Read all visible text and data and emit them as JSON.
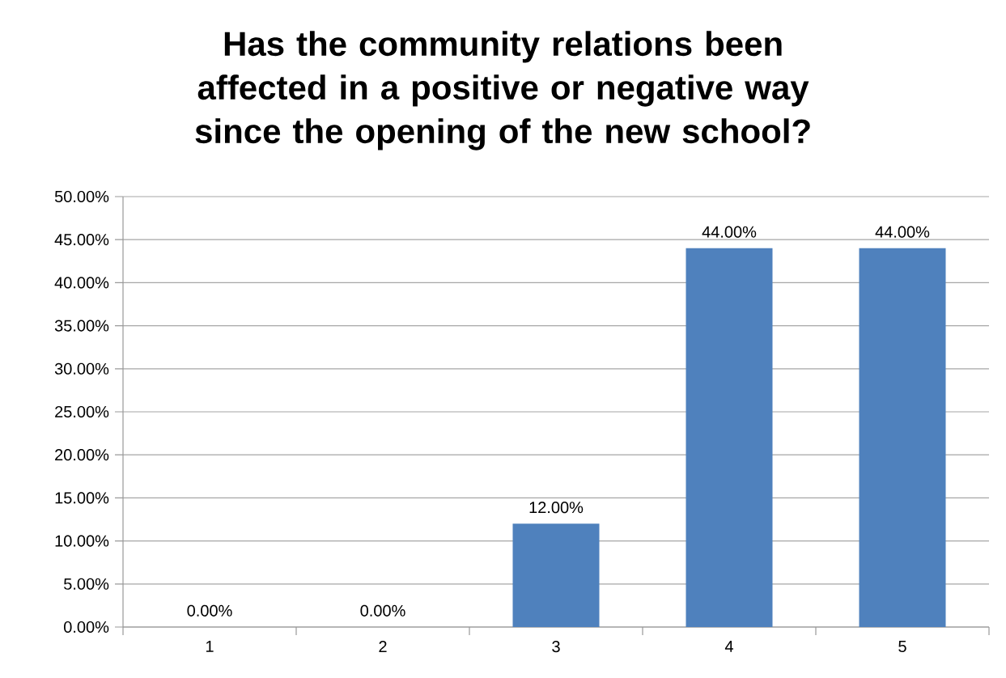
{
  "chart_data": {
    "type": "bar",
    "title": "Has the community relations been affected in a positive or negative way since the opening of the new school?",
    "categories": [
      "1",
      "2",
      "3",
      "4",
      "5"
    ],
    "values": [
      0,
      0,
      12,
      44,
      44
    ],
    "value_labels": [
      "0.00%",
      "0.00%",
      "12.00%",
      "44.00%",
      "44.00%"
    ],
    "color": "#4f81bd",
    "ylim": [
      0,
      50
    ],
    "yticks": [
      {
        "value": 0,
        "label": "0.00%"
      },
      {
        "value": 5,
        "label": "5.00%"
      },
      {
        "value": 10,
        "label": "10.00%"
      },
      {
        "value": 15,
        "label": "15.00%"
      },
      {
        "value": 20,
        "label": "20.00%"
      },
      {
        "value": 25,
        "label": "25.00%"
      },
      {
        "value": 30,
        "label": "30.00%"
      },
      {
        "value": 35,
        "label": "35.00%"
      },
      {
        "value": 40,
        "label": "40.00%"
      },
      {
        "value": 45,
        "label": "45.00%"
      },
      {
        "value": 50,
        "label": "50.00%"
      }
    ],
    "grid": "y"
  }
}
